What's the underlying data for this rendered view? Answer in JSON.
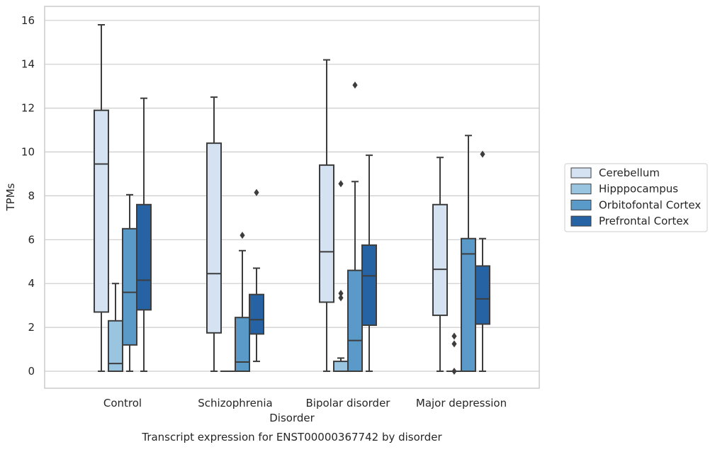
{
  "chart_data": {
    "type": "box",
    "xlabel": "Disorder",
    "ylabel": "TPMs",
    "caption": "Transcript expression for ENST00000367742 by disorder",
    "ylim": [
      -0.75,
      16.6
    ],
    "yticks": [
      0,
      2,
      4,
      6,
      8,
      10,
      12,
      14,
      16
    ],
    "grid": "horizontal",
    "legend_position": "right",
    "categories": [
      "Control",
      "Schizophrenia",
      "Bipolar disorder",
      "Major depression"
    ],
    "series": [
      {
        "name": "Cerebellum",
        "color": "#d4e2f2",
        "boxes": [
          {
            "whislo": 0,
            "q1": 2.7,
            "med": 9.45,
            "q3": 11.9,
            "whishi": 15.8,
            "fliers": []
          },
          {
            "whislo": 0,
            "q1": 1.75,
            "med": 4.45,
            "q3": 10.4,
            "whishi": 12.5,
            "fliers": []
          },
          {
            "whislo": 0,
            "q1": 3.15,
            "med": 5.45,
            "q3": 9.4,
            "whishi": 14.2,
            "fliers": []
          },
          {
            "whislo": 0,
            "q1": 2.55,
            "med": 4.65,
            "q3": 7.6,
            "whishi": 9.75,
            "fliers": []
          }
        ]
      },
      {
        "name": "Hipppocampus",
        "color": "#9ac5e0",
        "boxes": [
          {
            "whislo": 0,
            "q1": 0,
            "med": 0.35,
            "q3": 2.3,
            "whishi": 4.0,
            "fliers": []
          },
          {
            "whislo": 0,
            "q1": 0,
            "med": 0,
            "q3": 0,
            "whishi": 0,
            "fliers": []
          },
          {
            "whislo": 0,
            "q1": 0,
            "med": 0,
            "q3": 0.45,
            "whishi": 0.6,
            "fliers": [
              3.35,
              3.55,
              8.55
            ]
          },
          {
            "whislo": 0,
            "q1": 0,
            "med": 0,
            "q3": 0,
            "whishi": 0,
            "fliers": [
              0,
              1.25,
              1.6
            ]
          }
        ]
      },
      {
        "name": "Orbitofontal Cortex",
        "color": "#5a9ac8",
        "boxes": [
          {
            "whislo": 0,
            "q1": 1.2,
            "med": 3.6,
            "q3": 6.5,
            "whishi": 8.05,
            "fliers": []
          },
          {
            "whislo": 0,
            "q1": 0,
            "med": 0.42,
            "q3": 2.45,
            "whishi": 5.5,
            "fliers": [
              6.2
            ]
          },
          {
            "whislo": 0,
            "q1": 0,
            "med": 1.4,
            "q3": 4.6,
            "whishi": 8.65,
            "fliers": [
              13.05
            ]
          },
          {
            "whislo": 0,
            "q1": 0,
            "med": 5.35,
            "q3": 6.05,
            "whishi": 10.75,
            "fliers": []
          }
        ]
      },
      {
        "name": "Prefrontal Cortex",
        "color": "#2563a5",
        "boxes": [
          {
            "whislo": 0,
            "q1": 2.8,
            "med": 4.15,
            "q3": 7.6,
            "whishi": 12.45,
            "fliers": []
          },
          {
            "whislo": 0.45,
            "q1": 1.7,
            "med": 2.35,
            "q3": 3.5,
            "whishi": 4.7,
            "fliers": [
              8.15
            ]
          },
          {
            "whislo": 0,
            "q1": 2.1,
            "med": 4.35,
            "q3": 5.75,
            "whishi": 9.85,
            "fliers": []
          },
          {
            "whislo": 0,
            "q1": 2.15,
            "med": 3.3,
            "q3": 4.8,
            "whishi": 6.05,
            "fliers": [
              9.9
            ]
          }
        ]
      }
    ]
  }
}
